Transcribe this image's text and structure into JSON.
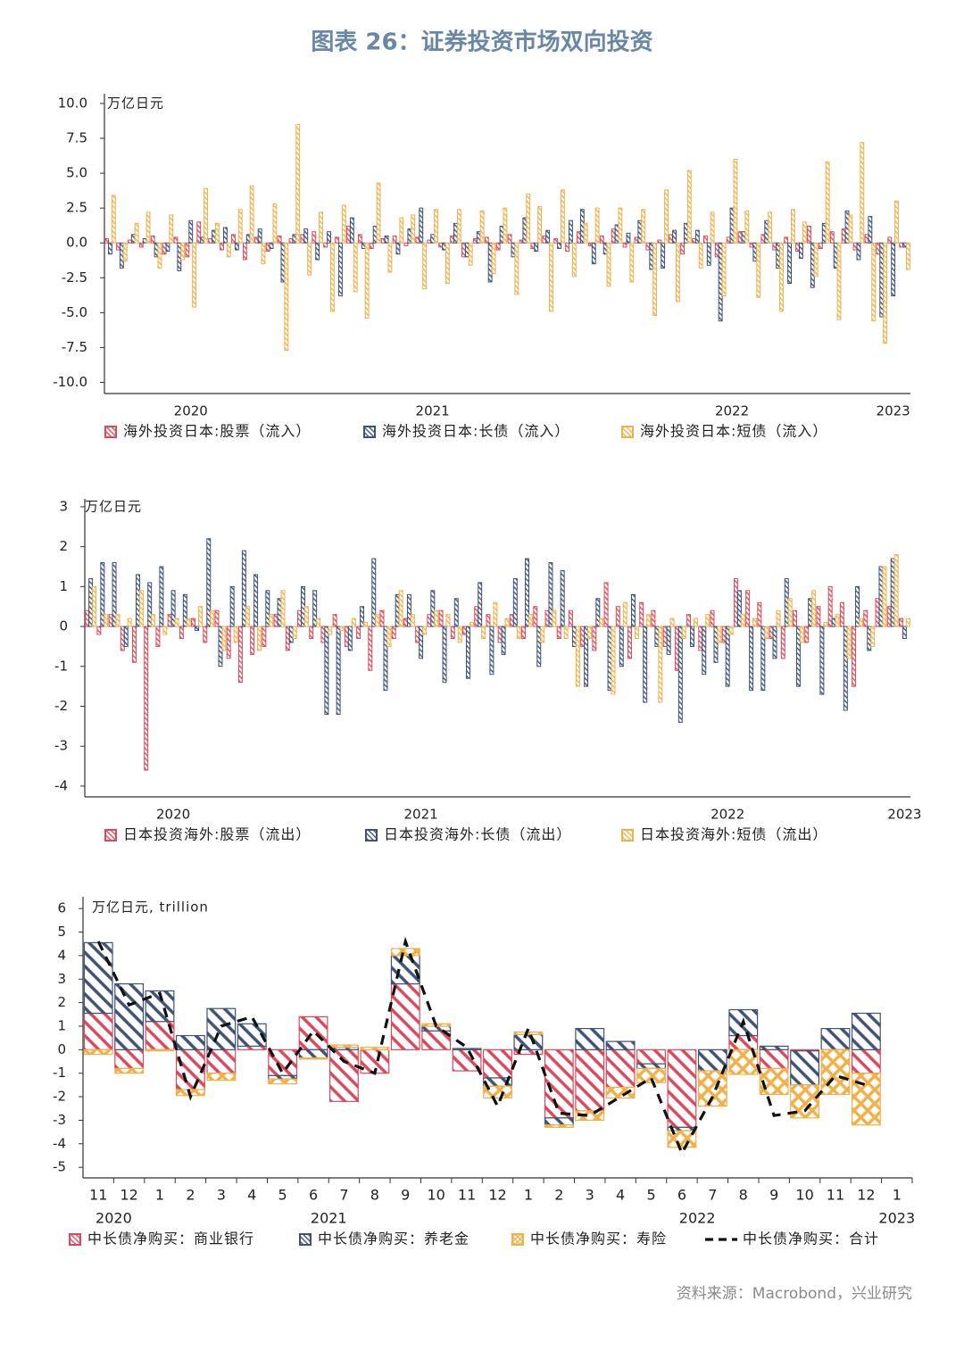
{
  "title": "图表 26：证券投资市场双向投资",
  "source": "资料来源：Macrobond，兴业研究",
  "chart_data": [
    {
      "type": "bar",
      "y_label": "万亿日元",
      "categories": [
        null,
        null,
        null,
        null,
        null,
        null,
        null,
        "2020",
        null,
        null,
        null,
        null,
        null,
        null,
        null,
        null,
        null,
        null,
        null,
        null,
        null,
        null,
        null,
        null,
        null,
        null,
        null,
        null,
        "2021",
        null,
        null,
        null,
        null,
        null,
        null,
        null,
        null,
        null,
        null,
        null,
        null,
        null,
        null,
        null,
        null,
        null,
        null,
        null,
        null,
        null,
        null,
        null,
        null,
        null,
        "2022",
        null,
        null,
        null,
        null,
        null,
        null,
        null,
        null,
        null,
        null,
        null,
        null,
        null,
        "2023",
        null
      ],
      "ylim": [
        -10.8,
        10.7
      ],
      "yticks": [
        {
          "value": 10,
          "label": "10.0"
        },
        {
          "value": 7.5,
          "label": "7.5"
        },
        {
          "value": 5,
          "label": "5.0"
        },
        {
          "value": 2.5,
          "label": "2.5"
        },
        {
          "value": 0,
          "label": "0.0"
        },
        {
          "value": -2.5,
          "label": "-2.5"
        },
        {
          "value": -5,
          "label": "-5.0"
        },
        {
          "value": -7.5,
          "label": "-7.5"
        },
        {
          "value": -10,
          "label": "-10.0"
        }
      ],
      "series": [
        {
          "name": "海外投资日本:股票（流入）",
          "color": "#d9495b",
          "pattern": "diagonal",
          "values": [
            0.3,
            -0.5,
            0.2,
            -0.3,
            0.5,
            -0.8,
            0.4,
            -1.0,
            1.5,
            0.3,
            -0.5,
            0.6,
            -1.2,
            0.4,
            -0.6,
            0.5,
            0.3,
            0.6,
            0.8,
            -0.3,
            0.4,
            1.2,
            0.6,
            -0.4,
            0.3,
            0.5,
            -0.2,
            0.4,
            0.2,
            -0.3,
            0.5,
            -1.0,
            0.3,
            0.4,
            -0.5,
            0.6,
            0.2,
            -0.4,
            0.5,
            0.3,
            -0.6,
            0.8,
            -0.2,
            0.5,
            1.0,
            -0.3,
            0.4,
            -0.5,
            0.2,
            0.6,
            -0.8,
            0.3,
            0.5,
            -1.0,
            0.4,
            0.8,
            -0.3,
            0.6,
            -0.5,
            0.4,
            -0.6,
            1.2,
            -0.4,
            0.8,
            1.0,
            -0.5,
            0.6,
            -0.8,
            0.4,
            -0.3
          ]
        },
        {
          "name": "海外投资日本:长债（流入）",
          "color": "#3f5275",
          "pattern": "diagonal",
          "values": [
            -0.8,
            -1.8,
            0.6,
            0.3,
            -1.0,
            -0.6,
            -2.0,
            1.6,
            0.4,
            0.9,
            1.1,
            -0.5,
            0.6,
            1.0,
            -0.4,
            -2.8,
            0.6,
            1.0,
            -1.2,
            0.8,
            -3.8,
            1.8,
            -0.4,
            1.2,
            0.5,
            -0.8,
            1.0,
            2.5,
            0.6,
            -0.5,
            1.4,
            -1.0,
            0.8,
            -2.8,
            1.2,
            -1.0,
            1.8,
            -0.6,
            0.9,
            -0.4,
            1.6,
            2.4,
            -1.5,
            -0.8,
            1.3,
            0.7,
            1.6,
            -1.9,
            -1.8,
            0.9,
            1.4,
            0.9,
            -1.6,
            -5.6,
            2.5,
            0.8,
            -1.3,
            1.6,
            -1.8,
            -2.9,
            -1.1,
            -3.2,
            1.4,
            -1.8,
            2.3,
            -1.2,
            1.9,
            -5.3,
            -3.8,
            -0.3
          ]
        },
        {
          "name": "海外投资日本:短债（流入）",
          "color": "#f0b04a",
          "pattern": "diagonal",
          "values": [
            3.4,
            -1.3,
            1.4,
            2.2,
            -1.8,
            2.0,
            -1.2,
            -4.6,
            3.9,
            1.4,
            -1.0,
            2.4,
            4.1,
            -1.5,
            2.8,
            -7.7,
            8.5,
            -2.3,
            2.2,
            -4.9,
            2.7,
            -3.5,
            -5.4,
            4.3,
            -2.1,
            1.8,
            2.0,
            -3.3,
            2.4,
            -2.9,
            2.4,
            -1.6,
            2.3,
            -2.2,
            2.5,
            -3.7,
            3.5,
            2.6,
            -4.9,
            3.8,
            -2.4,
            1.4,
            2.5,
            -3.1,
            2.5,
            -2.8,
            2.4,
            -5.2,
            3.8,
            -4.2,
            5.2,
            -1.8,
            2.2,
            -3.8,
            6.0,
            2.3,
            -3.9,
            2.2,
            -4.9,
            2.4,
            1.5,
            -2.4,
            5.8,
            -5.5,
            2.0,
            7.2,
            -5.6,
            -7.2,
            3.0,
            -1.9
          ]
        }
      ]
    },
    {
      "type": "bar",
      "y_label": "万亿日元",
      "categories": [
        null,
        null,
        null,
        null,
        null,
        null,
        null,
        "2020",
        null,
        null,
        null,
        null,
        null,
        null,
        null,
        null,
        null,
        null,
        null,
        null,
        null,
        null,
        null,
        null,
        null,
        null,
        null,
        null,
        "2021",
        null,
        null,
        null,
        null,
        null,
        null,
        null,
        null,
        null,
        null,
        null,
        null,
        null,
        null,
        null,
        null,
        null,
        null,
        null,
        null,
        null,
        null,
        null,
        null,
        null,
        "2022",
        null,
        null,
        null,
        null,
        null,
        null,
        null,
        null,
        null,
        null,
        null,
        null,
        null,
        null,
        "2023"
      ],
      "ylim": [
        -4.27,
        3.2
      ],
      "yticks": [
        3,
        2,
        1,
        0,
        -1,
        -2,
        -3,
        -4
      ],
      "series": [
        {
          "name": "日本投资海外:股票（流出）",
          "color": "#d9495b",
          "pattern": "diagonal",
          "values": [
            0.4,
            -0.2,
            0.3,
            -0.6,
            -0.9,
            -3.6,
            -0.5,
            0.3,
            -0.3,
            0.2,
            -0.4,
            0.4,
            -0.8,
            -1.4,
            -0.7,
            -0.5,
            0.3,
            -0.6,
            0.4,
            -0.3,
            -0.4,
            0.3,
            -0.5,
            -0.3,
            -1.1,
            0.4,
            -0.3,
            0.2,
            -0.4,
            0.3,
            0.4,
            -0.3,
            -0.2,
            0.5,
            0.3,
            -0.4,
            0.3,
            -0.3,
            0.5,
            0.4,
            -0.3,
            0.4,
            -0.5,
            -0.6,
            1.1,
            0.5,
            -0.8,
            0.6,
            0.4,
            -0.5,
            -1.1,
            0.3,
            -0.6,
            0.4,
            -0.4,
            1.2,
            0.9,
            0.6,
            -0.3,
            -0.8,
            0.4,
            -0.4,
            0.5,
            1.0,
            0.6,
            -1.5,
            0.4,
            0.7,
            0.5,
            0.2
          ]
        },
        {
          "name": "日本投资海外:长债（流出）",
          "color": "#3f5275",
          "pattern": "diagonal",
          "values": [
            1.2,
            1.6,
            1.6,
            -0.5,
            1.3,
            1.1,
            1.5,
            0.9,
            0.8,
            -0.1,
            2.2,
            -1.0,
            1.0,
            1.9,
            1.3,
            0.9,
            0.7,
            -0.4,
            1.0,
            0.9,
            -2.2,
            -2.2,
            -0.6,
            0.5,
            1.7,
            -1.6,
            0.8,
            0.8,
            -0.8,
            0.9,
            -1.4,
            0.7,
            -1.3,
            1.1,
            -1.2,
            -0.7,
            1.2,
            1.7,
            -1.0,
            1.6,
            1.4,
            -0.5,
            -1.5,
            0.7,
            -1.6,
            -1.0,
            0.8,
            -1.9,
            -0.5,
            -0.7,
            -2.4,
            -0.5,
            -1.2,
            -0.9,
            -1.5,
            0.9,
            -1.6,
            -1.6,
            -0.8,
            1.2,
            -1.5,
            0.7,
            -1.7,
            0.2,
            -2.1,
            1.0,
            -0.6,
            1.5,
            1.7,
            -0.3
          ]
        },
        {
          "name": "日本投资海外:短债（流出）",
          "color": "#f0b04a",
          "pattern": "diagonal",
          "values": [
            1.0,
            0.3,
            0.3,
            0.2,
            0.9,
            0.3,
            -0.2,
            0.2,
            0.2,
            0.5,
            0.4,
            -0.6,
            -0.4,
            0.5,
            -0.6,
            0.3,
            0.9,
            -0.3,
            0.5,
            0.2,
            -0.2,
            -0.1,
            0.2,
            0.1,
            0.3,
            -0.5,
            0.9,
            0.3,
            -0.2,
            0.4,
            0.3,
            -0.4,
            0.1,
            -0.3,
            0.6,
            0.2,
            -0.3,
            0.3,
            -0.4,
            0.4,
            -0.3,
            -1.5,
            -0.3,
            0.2,
            -1.7,
            0.6,
            -0.3,
            0.3,
            -1.9,
            0.2,
            -0.3,
            0.2,
            0.3,
            -0.4,
            -0.2,
            0.3,
            0.2,
            -0.3,
            0.4,
            0.7,
            -0.4,
            0.9,
            0.1,
            0.3,
            -0.8,
            0.2,
            -0.5,
            1.5,
            1.8,
            0.2
          ]
        }
      ]
    },
    {
      "type": "stacked_bar",
      "y_label": "万亿日元, trillion",
      "groups": [
        {
          "label": "2020",
          "categories": [
            "11",
            "12"
          ]
        },
        {
          "label": "2021",
          "categories": [
            "1",
            "2",
            "3",
            "4",
            "5",
            "6",
            "7",
            "8",
            "9",
            "10",
            "11",
            "12"
          ]
        },
        {
          "label": "2022",
          "categories": [
            "1",
            "2",
            "3",
            "4",
            "5",
            "6",
            "7",
            "8",
            "9",
            "10",
            "11",
            "12"
          ]
        },
        {
          "label": "2023",
          "categories": [
            "1"
          ]
        }
      ],
      "ylim": [
        -5.45,
        6.5
      ],
      "yticks": [
        6,
        5,
        4,
        3,
        2,
        1,
        0,
        -1,
        -2,
        -3,
        -4,
        -5
      ],
      "series": [
        {
          "name": "中长债净购买：商业银行",
          "color": "#d9495b",
          "pattern": "diagonal",
          "values": [
            1.55,
            -0.8,
            1.2,
            -1.7,
            -1.0,
            0.15,
            -1.1,
            1.4,
            -2.2,
            -1.0,
            2.8,
            0.8,
            -0.9,
            -1.2,
            -0.2,
            -2.9,
            -2.6,
            -1.6,
            -0.6,
            -3.3,
            0,
            0.6,
            -0.8,
            -0.05,
            0,
            -1.0,
            null
          ]
        },
        {
          "name": "中长债净购买：养老金",
          "color": "#3f5275",
          "pattern": "diagonal",
          "values": [
            3.0,
            2.8,
            1.3,
            0.6,
            1.75,
            0.95,
            -0.15,
            -0.35,
            0.1,
            0,
            1.2,
            0.2,
            0.05,
            -0.35,
            0.65,
            -0.3,
            0.9,
            0.35,
            -0.2,
            -0.15,
            -0.9,
            1.1,
            0.15,
            -1.45,
            0.9,
            1.55,
            null
          ]
        },
        {
          "name": "中长债净购买：寿险",
          "color": "#f0b04a",
          "pattern": "cross",
          "values": [
            -0.2,
            -0.2,
            -0.05,
            -0.25,
            -0.3,
            0,
            -0.2,
            -0.05,
            0.1,
            0.1,
            0.3,
            0.1,
            0,
            -0.5,
            0.1,
            -0.1,
            -0.4,
            -0.45,
            -0.6,
            -0.7,
            -1.5,
            -1.05,
            -1.1,
            -1.4,
            -1.9,
            -2.2,
            null
          ]
        },
        {
          "name": "中长债净购买：合计",
          "color": "#111111",
          "type": "line",
          "values": [
            4.6,
            1.9,
            2.4,
            -2.0,
            1.0,
            1.4,
            -1.0,
            0.8,
            -0.5,
            -1.0,
            4.6,
            1.0,
            0.1,
            -2.4,
            0.9,
            -2.7,
            -2.8,
            -2.0,
            -1.2,
            -4.4,
            -2.0,
            1.2,
            -2.8,
            -2.6,
            -1.1,
            -1.5,
            null
          ]
        }
      ]
    }
  ]
}
